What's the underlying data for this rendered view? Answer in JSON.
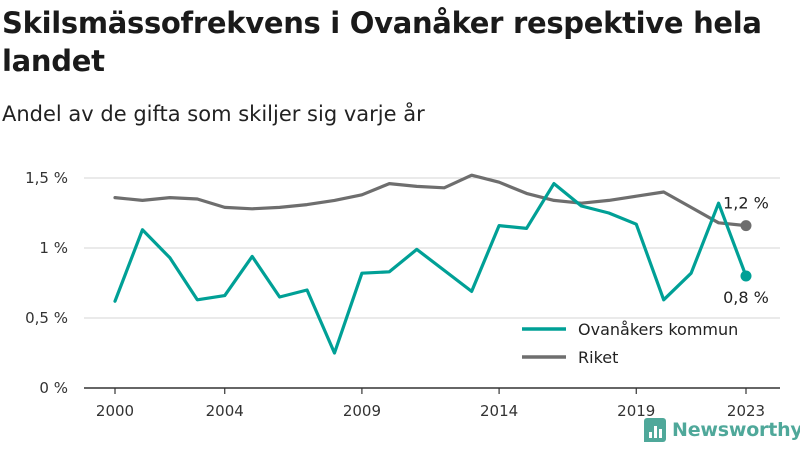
{
  "title": "Skilsmässofrekvens i Ovanåker respektive hela landet",
  "subtitle": "Andel av de gifta som skiljer sig varje år",
  "brand": {
    "name": "Newsworthy",
    "color": "#4fa89a",
    "icon": "bar-chart-icon"
  },
  "chart_data": {
    "type": "line",
    "title": "Skilsmässofrekvens i Ovanåker respektive hela landet",
    "subtitle": "Andel av de gifta som skiljer sig varje år",
    "x": [
      2000,
      2001,
      2002,
      2003,
      2004,
      2005,
      2006,
      2007,
      2008,
      2009,
      2010,
      2011,
      2012,
      2013,
      2014,
      2015,
      2016,
      2017,
      2018,
      2019,
      2020,
      2021,
      2022,
      2023
    ],
    "x_ticks": [
      "2000",
      "2004",
      "2009",
      "2014",
      "2019",
      "2023"
    ],
    "y_ticks": [
      "0 %",
      "0,5 %",
      "1 %",
      "1,5 %"
    ],
    "y_tick_values": [
      0,
      0.5,
      1,
      1.5
    ],
    "ylim": [
      0,
      1.5
    ],
    "grid": true,
    "legend_position": "bottom-right",
    "series": [
      {
        "name": "Ovanåkers kommun",
        "color": "#00a096",
        "values": [
          0.62,
          1.13,
          0.93,
          0.63,
          0.66,
          0.94,
          0.65,
          0.7,
          0.25,
          0.82,
          0.83,
          0.99,
          0.84,
          0.69,
          1.16,
          1.14,
          1.46,
          1.3,
          1.25,
          1.17,
          0.63,
          0.82,
          1.32,
          0.8
        ],
        "end_label": "0,8 %"
      },
      {
        "name": "Riket",
        "color": "#6e6e6e",
        "values": [
          1.36,
          1.34,
          1.36,
          1.35,
          1.29,
          1.28,
          1.29,
          1.31,
          1.34,
          1.38,
          1.46,
          1.44,
          1.43,
          1.52,
          1.47,
          1.39,
          1.34,
          1.32,
          1.34,
          1.37,
          1.4,
          1.29,
          1.18,
          1.16
        ],
        "end_label": "1,2 %"
      }
    ]
  }
}
